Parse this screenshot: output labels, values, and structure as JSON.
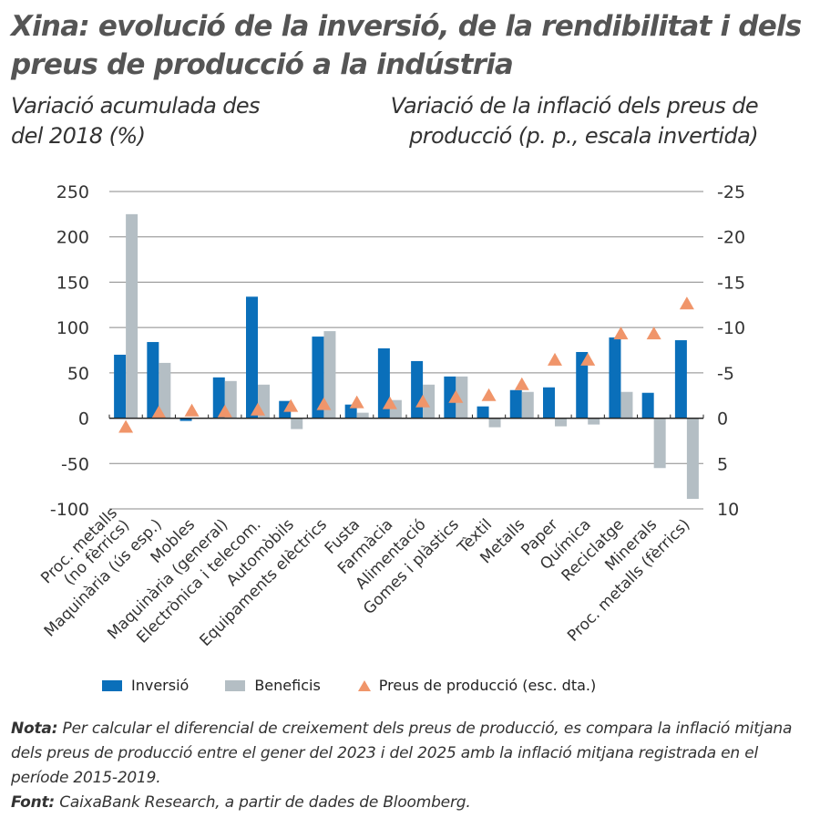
{
  "title": "Xina: evolució de la inversió, de la rendibilitat i dels preus de producció a la indústria",
  "chart_data": {
    "type": "bar",
    "ylabel_left": "Variació acumulada des del 2018 (%)",
    "ylabel_right": "Variació de la inflació dels preus de producció (p. p., escala invertida)",
    "ylim_left": [
      -100,
      250
    ],
    "yticks_left": [
      "250",
      "200",
      "150",
      "100",
      "50",
      "0",
      "-50",
      "-100"
    ],
    "ylim_right": [
      10,
      -25
    ],
    "yticks_right": [
      "-25",
      "-20",
      "-15",
      "-10",
      "-5",
      "0",
      "5",
      "10"
    ],
    "right_axis_inverted": true,
    "grid": true,
    "legend_position": "bottom",
    "categories": [
      "Proc. metalls (no fèrrics)",
      "Maquinària (ús esp.)",
      "Mobles",
      "Maquinària (general)",
      "Electrònica i telecom.",
      "Automòbils",
      "Equipaments elèctrics",
      "Fusta",
      "Farmàcia",
      "Alimentació",
      "Gomes i plàstics",
      "Tèxtil",
      "Metalls",
      "Paper",
      "Química",
      "Reciclatge",
      "Minerals",
      "Proc. metalls (fèrrics)"
    ],
    "series": [
      {
        "name": "Inversió",
        "type": "bar",
        "axis": "left",
        "color": "#0a6fba",
        "values": [
          70,
          84,
          -3,
          45,
          134,
          19,
          90,
          15,
          77,
          63,
          46,
          13,
          31,
          34,
          73,
          89,
          28,
          86
        ]
      },
      {
        "name": "Beneficis",
        "type": "bar",
        "axis": "left",
        "color": "#b4bec4",
        "values": [
          225,
          61,
          0,
          41,
          37,
          -12,
          96,
          6,
          20,
          37,
          46,
          -10,
          29,
          -9,
          -7,
          29,
          -55,
          -89
        ]
      },
      {
        "name": "Preus de producció (esc. dta.)",
        "type": "scatter",
        "marker": "triangle",
        "axis": "right",
        "color": "#f0956a",
        "values": [
          1.0,
          -0.6,
          -0.8,
          -0.7,
          -0.9,
          -1.3,
          -1.5,
          -1.7,
          -1.6,
          -1.8,
          -2.3,
          -2.5,
          -3.7,
          -6.4,
          -6.4,
          -9.3,
          -9.3,
          -12.6
        ]
      }
    ]
  },
  "note": {
    "label": "Nota:",
    "text": " Per calcular el diferencial de creixement dels preus de producció, es compara la inflació mitjana dels preus de producció entre el gener del 2023 i del 2025 amb la inflació mitjana registrada en el període 2015-2019."
  },
  "source": {
    "label": "Font:",
    "text": " CaixaBank Research, a partir de dades de Bloomberg."
  }
}
